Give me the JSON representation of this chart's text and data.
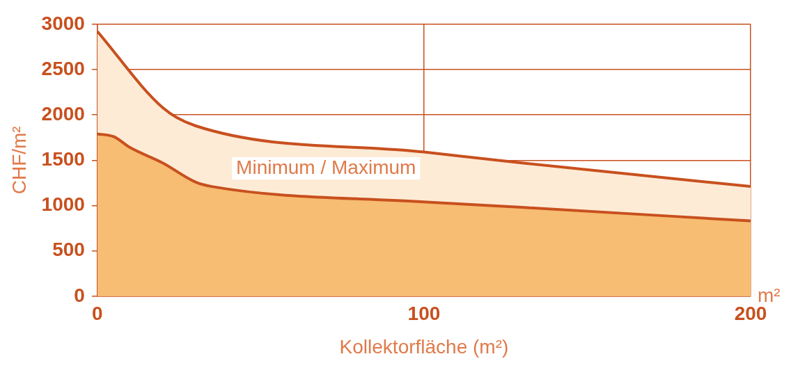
{
  "chart_data": {
    "type": "area",
    "xlabel": "Kollektorfläche (m²)",
    "ylabel": "CHF/m²",
    "annotations": [
      "Minimum / Maximum",
      "m²"
    ],
    "series": [
      {
        "color": "#f7bd72",
        "x": [
          0,
          5,
          10,
          20,
          30,
          35,
          100,
          130,
          200
        ],
        "values": [
          1790,
          1760,
          1640,
          1470,
          1260,
          1210,
          1040,
          980,
          830
        ]
      },
      {
        "color": "#fdebd6",
        "x": [
          0,
          20,
          30,
          100,
          130,
          200
        ],
        "values": [
          2920,
          2080,
          1880,
          1590,
          1470,
          1210
        ]
      }
    ],
    "xlim": [
      0,
      200
    ],
    "xticks": [
      0,
      100,
      200
    ],
    "ylim": [
      0,
      3000
    ],
    "yticks": [
      0,
      500,
      1000,
      1500,
      2000,
      2500,
      3000
    ],
    "grid": true,
    "legend": false,
    "marker": "none",
    "line_style": "solid"
  }
}
